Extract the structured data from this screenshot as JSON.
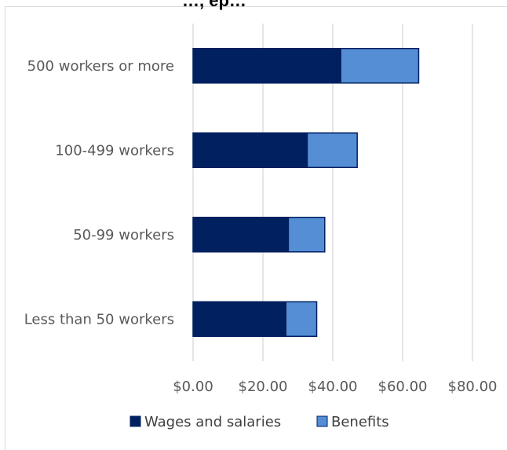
{
  "chart_data": {
    "type": "bar",
    "orientation": "horizontal",
    "stacked": true,
    "title": "…, ep…",
    "categories": [
      "Less than 50 workers",
      "50-99 workers",
      "100-499 workers",
      "500 workers or more"
    ],
    "series": [
      {
        "name": "Wages and salaries",
        "color": "#002060",
        "values": [
          26.8,
          27.5,
          32.9,
          42.5
        ]
      },
      {
        "name": "Benefits",
        "color": "#558ED5",
        "values": [
          8.6,
          10.2,
          14.1,
          22.1
        ]
      }
    ],
    "xlim": [
      0,
      80
    ],
    "xticks": [
      "$0.00",
      "$20.00",
      "$40.00",
      "$60.00",
      "$80.00"
    ],
    "grid": true,
    "legend": "bottom"
  }
}
